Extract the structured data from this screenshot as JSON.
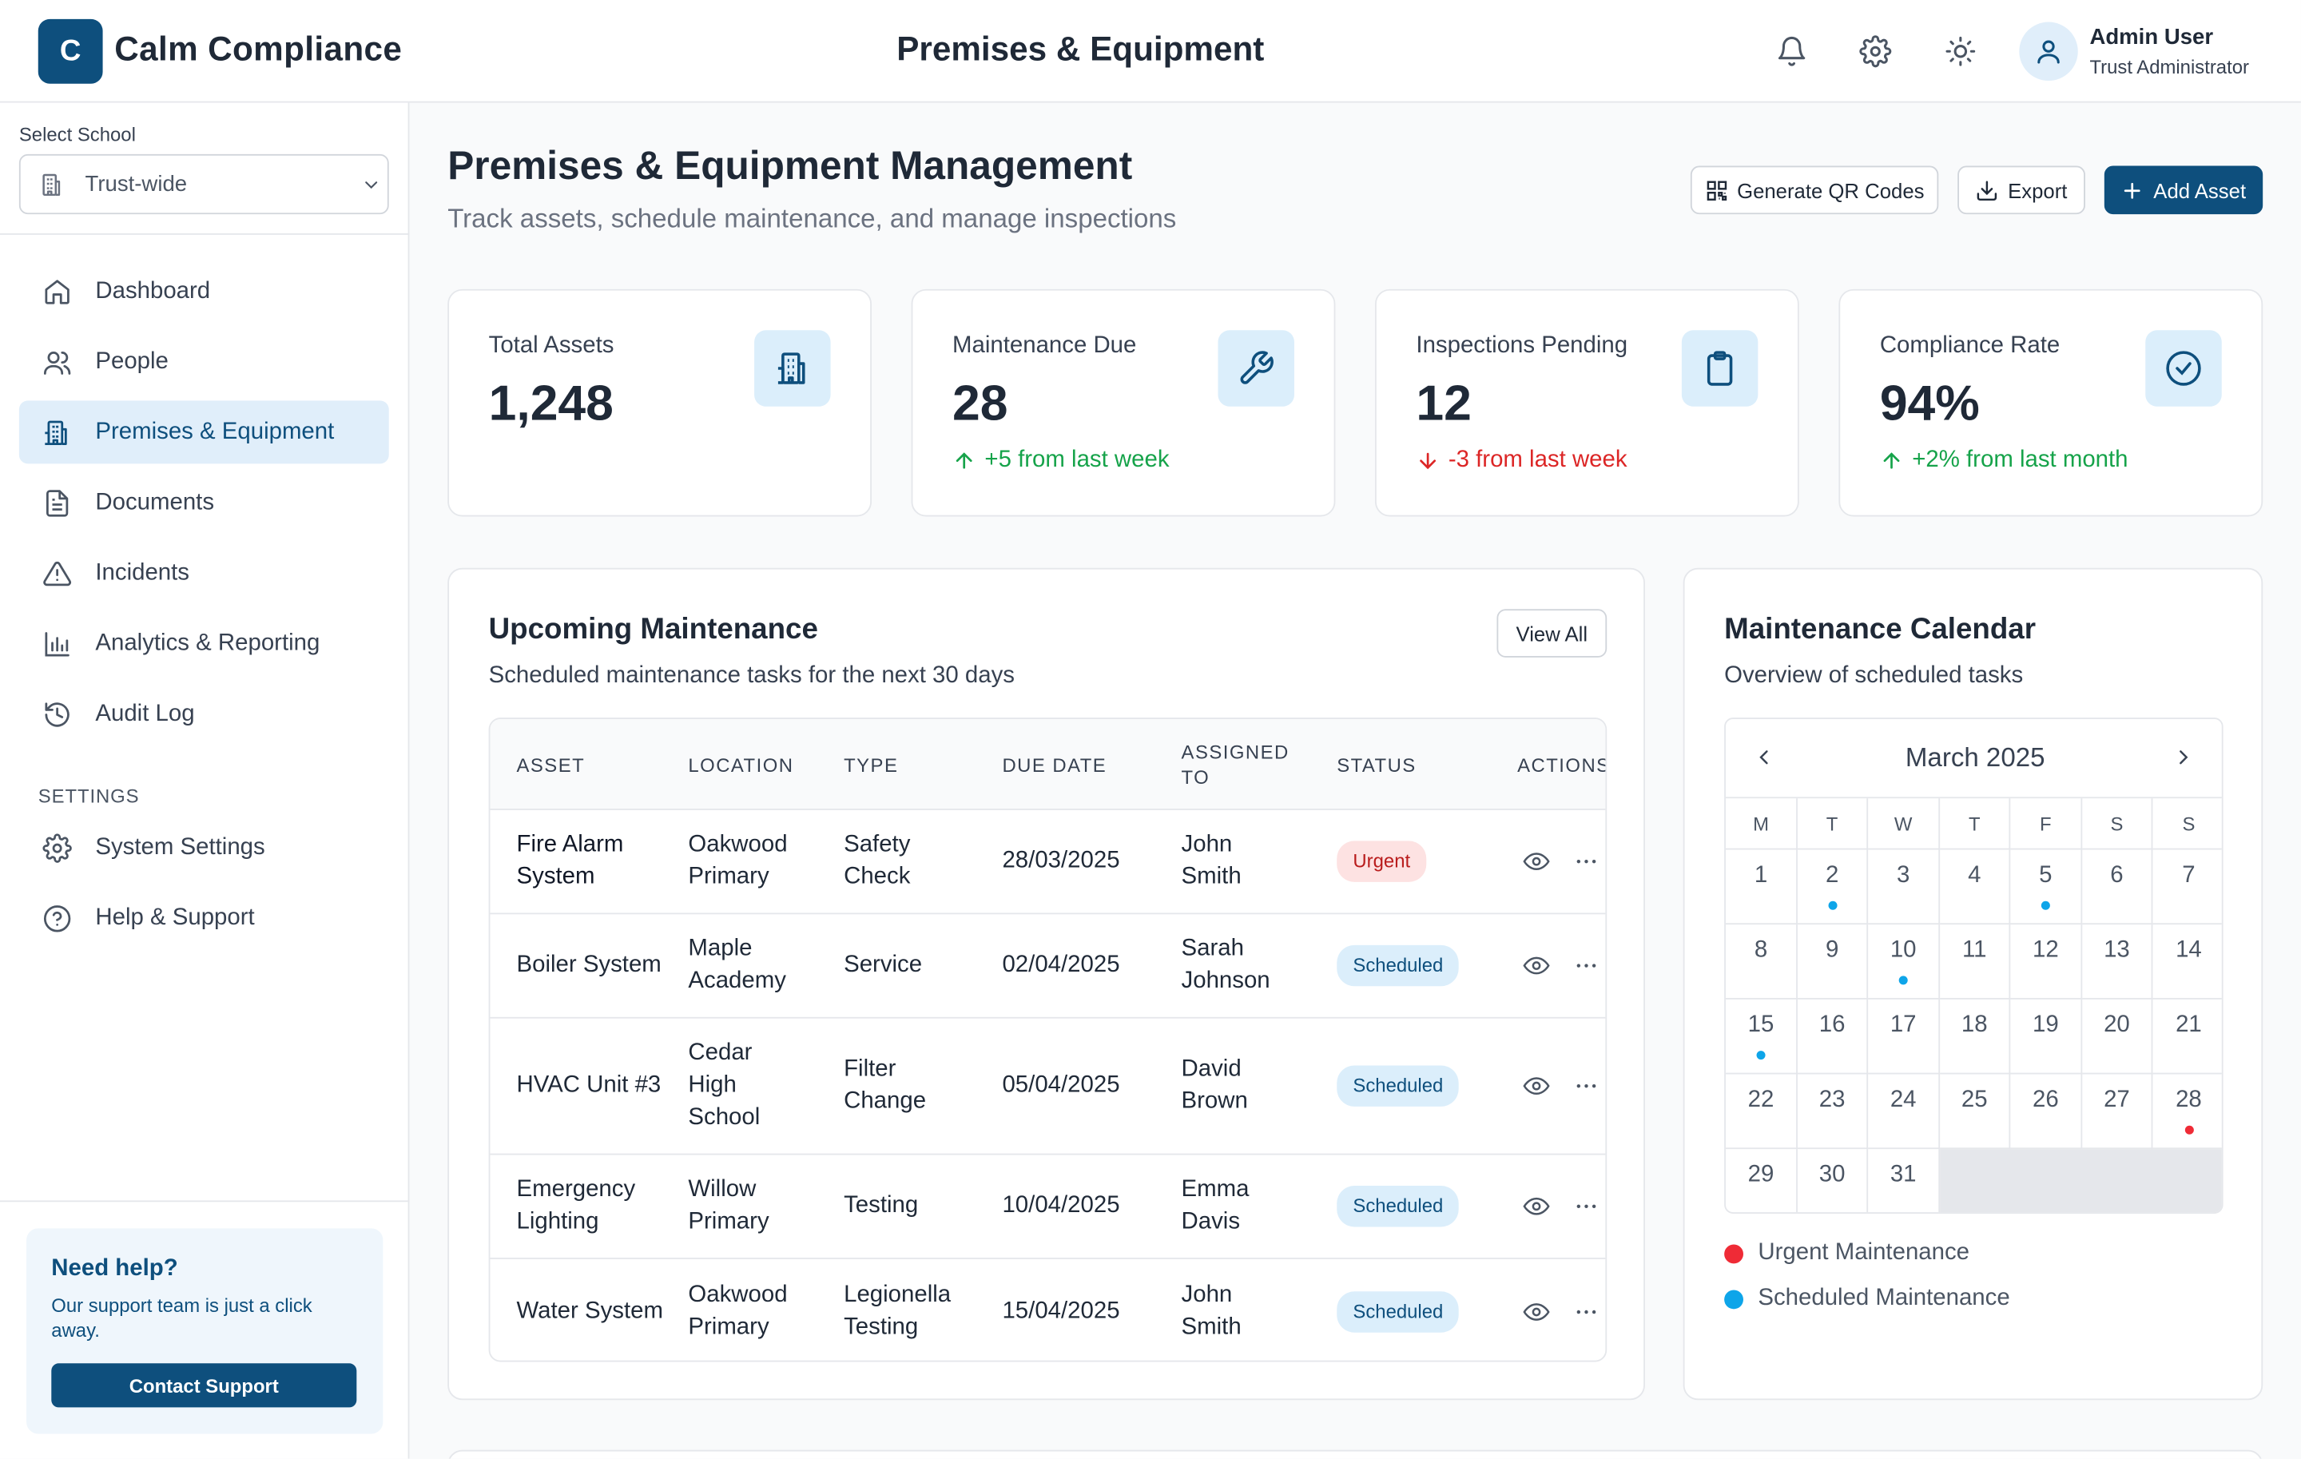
{
  "header": {
    "logo_letter": "C",
    "app_name": "Calm Compliance",
    "page_title": "Premises & Equipment",
    "user": {
      "name": "Admin User",
      "role": "Trust Administrator"
    }
  },
  "sidebar": {
    "school_label": "Select School",
    "school_value": "Trust-wide",
    "nav": [
      {
        "label": "Dashboard",
        "icon": "home-icon"
      },
      {
        "label": "People",
        "icon": "users-icon"
      },
      {
        "label": "Premises & Equipment",
        "icon": "building-icon",
        "active": true
      },
      {
        "label": "Documents",
        "icon": "document-icon"
      },
      {
        "label": "Incidents",
        "icon": "warning-icon"
      },
      {
        "label": "Analytics & Reporting",
        "icon": "bar-chart-icon"
      },
      {
        "label": "Audit Log",
        "icon": "history-icon"
      }
    ],
    "settings_heading": "SETTINGS",
    "settings_nav": [
      {
        "label": "System Settings",
        "icon": "gear-icon"
      },
      {
        "label": "Help & Support",
        "icon": "help-circle-icon"
      }
    ],
    "help": {
      "title": "Need help?",
      "text": "Our support team is just a click away.",
      "button": "Contact Support"
    }
  },
  "main": {
    "title": "Premises & Equipment Management",
    "subtitle": "Track assets, schedule maintenance, and manage inspections",
    "actions": {
      "qr": "Generate QR Codes",
      "export": "Export",
      "add": "Add Asset"
    },
    "stats": [
      {
        "label": "Total Assets",
        "value": "1,248",
        "trend": "",
        "dir": ""
      },
      {
        "label": "Maintenance Due",
        "value": "28",
        "trend": "+5 from last week",
        "dir": "up"
      },
      {
        "label": "Inspections Pending",
        "value": "12",
        "trend": "-3 from last week",
        "dir": "down"
      },
      {
        "label": "Compliance Rate",
        "value": "94%",
        "trend": "+2% from last month",
        "dir": "up"
      }
    ],
    "maintenance": {
      "title": "Upcoming Maintenance",
      "subtitle": "Scheduled maintenance tasks for the next 30 days",
      "view_all": "View All",
      "columns": [
        "ASSET",
        "LOCATION",
        "TYPE",
        "DUE DATE",
        "ASSIGNED TO",
        "STATUS",
        "ACTIONS"
      ],
      "rows": [
        {
          "asset": "Fire Alarm System",
          "location": "Oakwood Primary",
          "type": "Safety Check",
          "due": "28/03/2025",
          "assigned": "John Smith",
          "status": "Urgent"
        },
        {
          "asset": "Boiler System",
          "location": "Maple Academy",
          "type": "Service",
          "due": "02/04/2025",
          "assigned": "Sarah Johnson",
          "status": "Scheduled"
        },
        {
          "asset": "HVAC Unit #3",
          "location": "Cedar High School",
          "type": "Filter Change",
          "due": "05/04/2025",
          "assigned": "David Brown",
          "status": "Scheduled"
        },
        {
          "asset": "Emergency Lighting",
          "location": "Willow Primary",
          "type": "Testing",
          "due": "10/04/2025",
          "assigned": "Emma Davis",
          "status": "Scheduled"
        },
        {
          "asset": "Water System",
          "location": "Oakwood Primary",
          "type": "Legionella Testing",
          "due": "15/04/2025",
          "assigned": "John Smith",
          "status": "Scheduled"
        }
      ]
    },
    "calendar": {
      "title": "Maintenance Calendar",
      "subtitle": "Overview of scheduled tasks",
      "month": "March 2025",
      "weekdays": [
        "M",
        "T",
        "W",
        "T",
        "F",
        "S",
        "S"
      ],
      "days": [
        "1",
        "2",
        "3",
        "4",
        "5",
        "6",
        "7",
        "8",
        "9",
        "10",
        "11",
        "12",
        "13",
        "14",
        "15",
        "16",
        "17",
        "18",
        "19",
        "20",
        "21",
        "22",
        "23",
        "24",
        "25",
        "26",
        "27",
        "28",
        "29",
        "30",
        "31"
      ],
      "scheduled_days": [
        "2",
        "5",
        "10",
        "15"
      ],
      "urgent_days": [
        "28"
      ],
      "legend": {
        "urgent": "Urgent Maintenance",
        "scheduled": "Scheduled Maintenance"
      },
      "colors": {
        "urgent": "#ef2b36",
        "scheduled": "#0ea5e9"
      }
    }
  }
}
